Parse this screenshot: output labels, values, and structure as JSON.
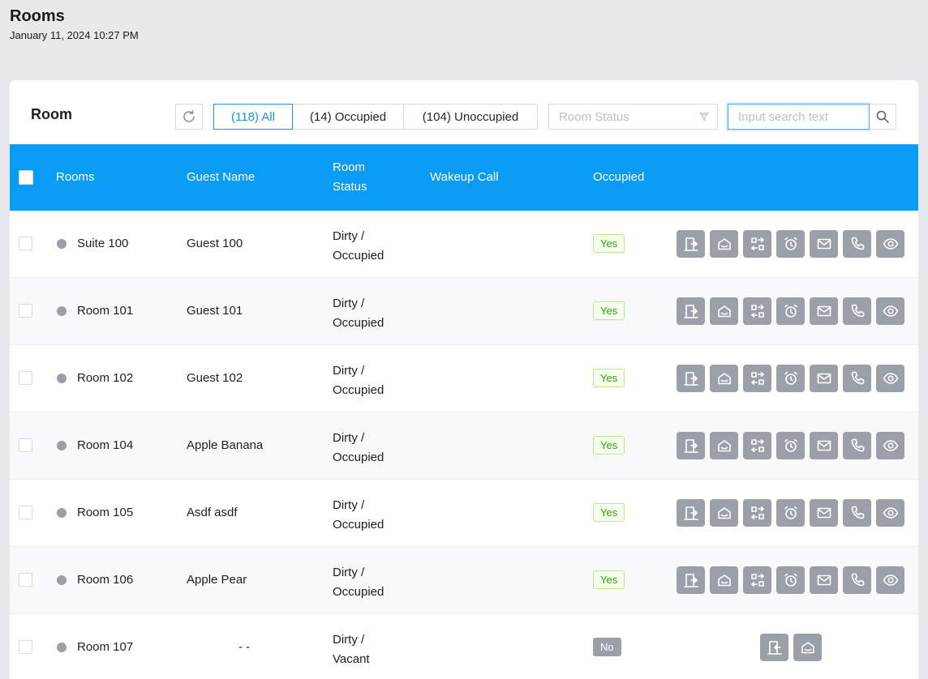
{
  "page": {
    "title": "Rooms",
    "datetime": "January 11, 2024 10:27 PM"
  },
  "toolbar": {
    "title": "Room",
    "filters": [
      {
        "label": "(118) All",
        "active": true
      },
      {
        "label": "(14) Occupied",
        "active": false
      },
      {
        "label": "(104) Unoccupied",
        "active": false
      }
    ],
    "status_placeholder": "Room Status",
    "search_placeholder": "Input search text"
  },
  "table": {
    "columns": {
      "rooms": "Rooms",
      "guest_name": "Guest Name",
      "room_status_1": "Room",
      "room_status_2": "Status",
      "wakeup_call": "Wakeup Call",
      "occupied": "Occupied"
    },
    "rows": [
      {
        "room": "Suite 100",
        "guest": "Guest 100",
        "status_1": "Dirty /",
        "status_2": "Occupied",
        "occupied": "Yes"
      },
      {
        "room": "Room 101",
        "guest": "Guest 101",
        "status_1": "Dirty /",
        "status_2": "Occupied",
        "occupied": "Yes"
      },
      {
        "room": "Room 102",
        "guest": "Guest 102",
        "status_1": "Dirty /",
        "status_2": "Occupied",
        "occupied": "Yes"
      },
      {
        "room": "Room 104",
        "guest": "Apple Banana",
        "status_1": "Dirty /",
        "status_2": "Occupied",
        "occupied": "Yes"
      },
      {
        "room": "Room 105",
        "guest": "Asdf asdf",
        "status_1": "Dirty /",
        "status_2": "Occupied",
        "occupied": "Yes"
      },
      {
        "room": "Room 106",
        "guest": "Apple Pear",
        "status_1": "Dirty /",
        "status_2": "Occupied",
        "occupied": "Yes"
      },
      {
        "room": "Room 107",
        "guest": "- -",
        "status_1": "Dirty /",
        "status_2": "Vacant",
        "occupied": "No"
      }
    ]
  },
  "colors": {
    "header_bg": "#0a9cf5",
    "accent": "#1890ff",
    "action_bg": "#9b9fa7",
    "badge_yes": "#389e0d"
  },
  "icons": {
    "occupied_actions": [
      "check-out-icon",
      "housekeeping-icon",
      "room-move-icon",
      "alarm-icon",
      "mail-icon",
      "phone-icon",
      "view-icon"
    ],
    "vacant_actions": [
      "check-in-icon",
      "housekeeping-icon"
    ]
  }
}
